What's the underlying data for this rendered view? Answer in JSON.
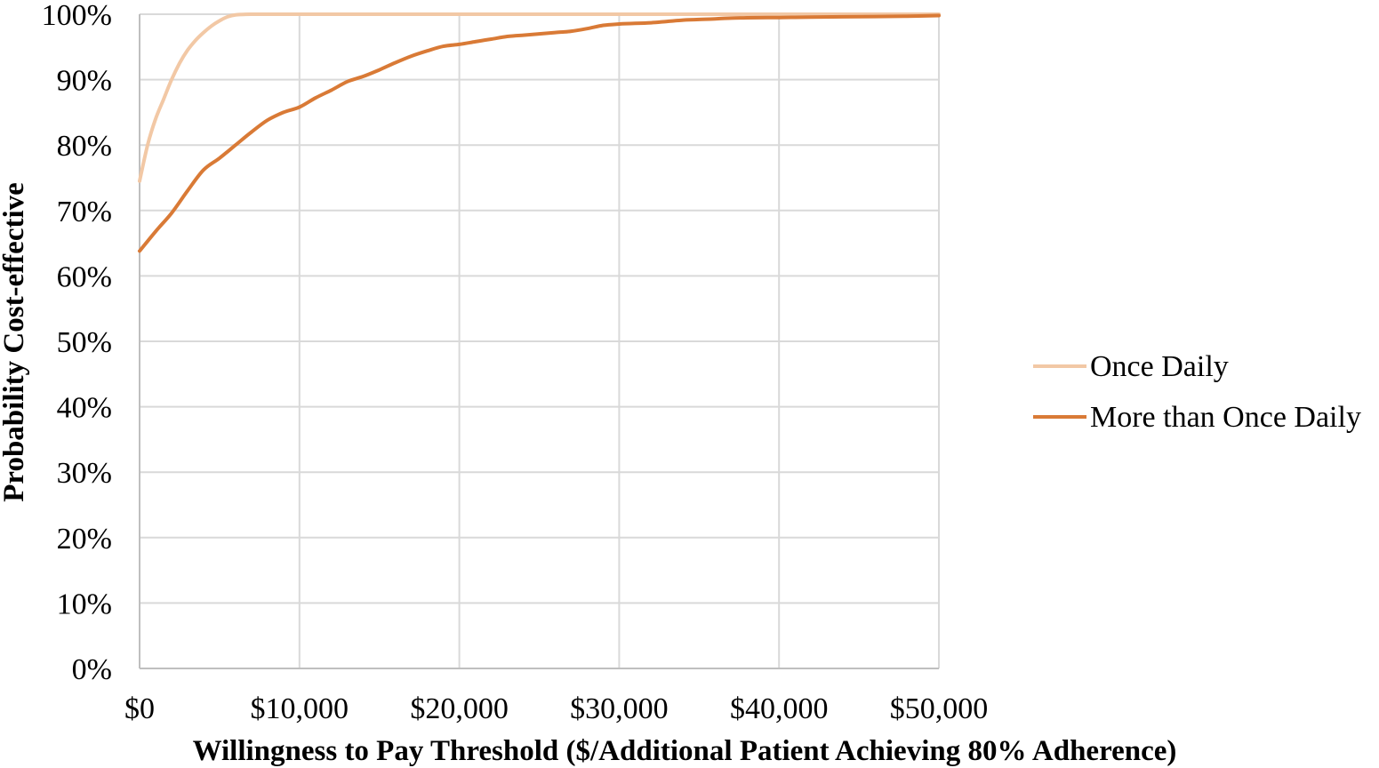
{
  "chart_data": {
    "type": "line",
    "title": "",
    "xlabel": "Willingness to Pay Threshold ($/Additional Patient Achieving 80% Adherence)",
    "ylabel": "Probability Cost-effective",
    "xlim": [
      0,
      50000
    ],
    "ylim": [
      0,
      100
    ],
    "x_ticks": [
      0,
      10000,
      20000,
      30000,
      40000,
      50000
    ],
    "x_tick_labels": [
      "$0",
      "$10,000",
      "$20,000",
      "$30,000",
      "$40,000",
      "$50,000"
    ],
    "y_ticks": [
      0,
      10,
      20,
      30,
      40,
      50,
      60,
      70,
      80,
      90,
      100
    ],
    "y_tick_labels": [
      "0%",
      "10%",
      "20%",
      "30%",
      "40%",
      "50%",
      "60%",
      "70%",
      "80%",
      "90%",
      "100%"
    ],
    "grid": true,
    "legend_position": "right",
    "series": [
      {
        "name": "Once Daily",
        "color": "#f2c8a5",
        "x": [
          0,
          500,
          1000,
          1500,
          2000,
          2500,
          3000,
          3500,
          4000,
          4500,
          5000,
          5500,
          6000,
          7000,
          8000,
          10000,
          20000,
          30000,
          40000,
          50000
        ],
        "values": [
          74.5,
          80,
          84,
          87,
          90,
          92.5,
          94.5,
          96,
          97.2,
          98.2,
          99,
          99.6,
          99.9,
          100,
          100,
          100,
          100,
          100,
          100,
          100
        ]
      },
      {
        "name": "More than Once Daily",
        "color": "#d97a36",
        "x": [
          0,
          1000,
          2000,
          3000,
          4000,
          5000,
          6000,
          7000,
          8000,
          9000,
          10000,
          11000,
          12000,
          13000,
          14000,
          15000,
          16000,
          17000,
          18000,
          19000,
          20000,
          21000,
          22000,
          23000,
          24000,
          25000,
          26000,
          27000,
          28000,
          29000,
          30000,
          31000,
          32000,
          33000,
          34000,
          35000,
          36000,
          37000,
          38000,
          40000,
          42000,
          44000,
          46000,
          48000,
          50000
        ],
        "values": [
          63.8,
          66.8,
          69.6,
          73,
          76.2,
          78,
          80,
          82,
          83.8,
          85,
          85.8,
          87.2,
          88.4,
          89.7,
          90.5,
          91.5,
          92.6,
          93.6,
          94.4,
          95.1,
          95.4,
          95.8,
          96.2,
          96.6,
          96.8,
          97,
          97.2,
          97.4,
          97.8,
          98.3,
          98.5,
          98.6,
          98.7,
          98.9,
          99.1,
          99.2,
          99.3,
          99.4,
          99.45,
          99.5,
          99.55,
          99.6,
          99.65,
          99.7,
          99.8
        ]
      }
    ]
  }
}
